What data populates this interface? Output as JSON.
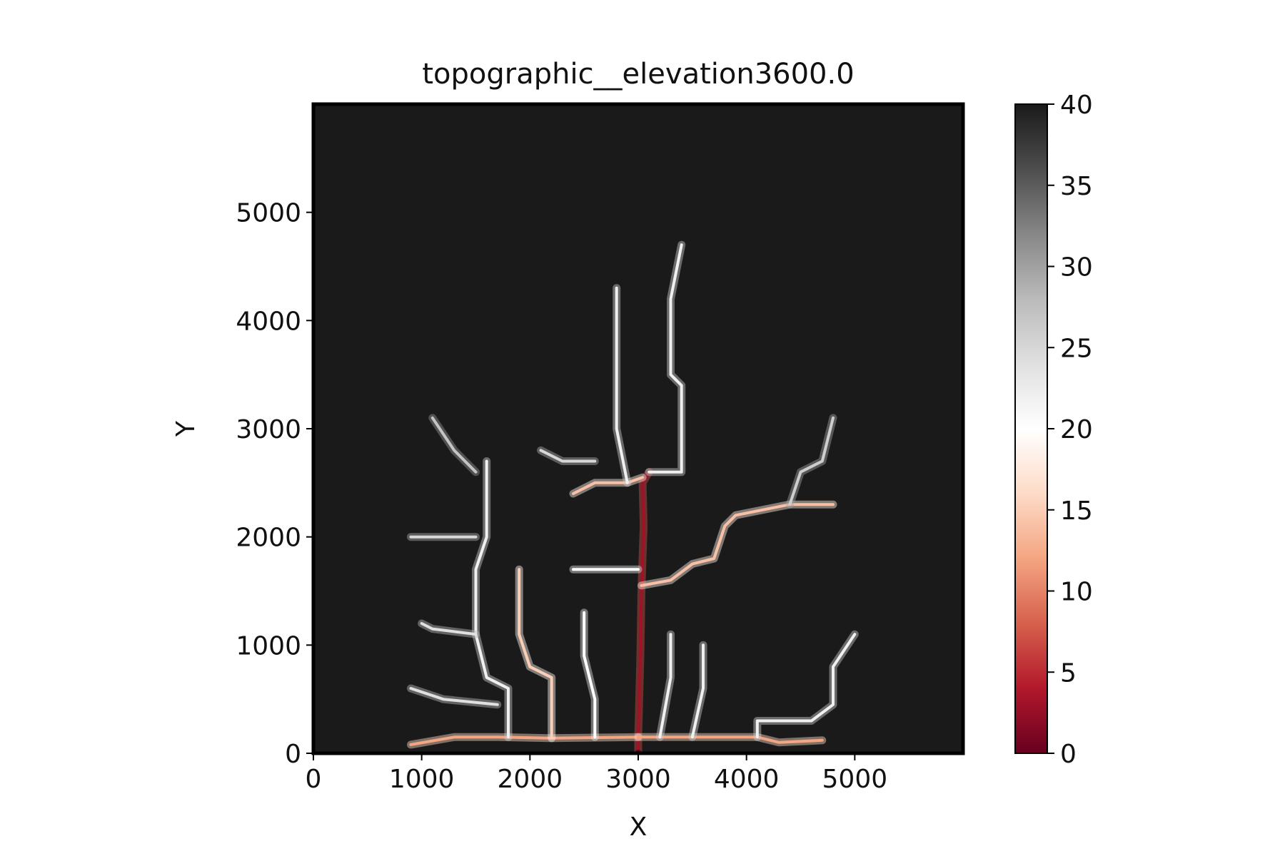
{
  "chart_data": {
    "type": "heatmap",
    "title": "topographic__elevation3600.0",
    "xlabel": "X",
    "ylabel": "Y",
    "xlim": [
      0,
      6000
    ],
    "ylim": [
      0,
      6000
    ],
    "xticks": [
      "0",
      "1000",
      "2000",
      "3000",
      "4000",
      "5000"
    ],
    "yticks": [
      "0",
      "1000",
      "2000",
      "3000",
      "4000",
      "5000"
    ],
    "colorbar": {
      "min": 0,
      "max": 40,
      "ticks": [
        "0",
        "5",
        "10",
        "15",
        "20",
        "25",
        "30",
        "35",
        "40"
      ],
      "colormap": "RdGy",
      "stops": [
        "#67001f",
        "#b2182b",
        "#d6604d",
        "#f4a582",
        "#fddbc7",
        "#ffffff",
        "#e0e0e0",
        "#bababa",
        "#878787",
        "#4d4d4d",
        "#1a1a1a"
      ]
    },
    "background_value": 40,
    "outlet": [
      3000,
      0
    ],
    "channels": [
      {
        "points": [
          [
            3000,
            0
          ],
          [
            3000,
            150
          ],
          [
            3020,
            900
          ],
          [
            3030,
            1500
          ],
          [
            3050,
            2100
          ],
          [
            3040,
            2500
          ],
          [
            3100,
            2600
          ]
        ],
        "z": 3
      },
      {
        "points": [
          [
            3000,
            150
          ],
          [
            2200,
            140
          ],
          [
            1700,
            150
          ],
          [
            1300,
            150
          ],
          [
            900,
            80
          ]
        ],
        "z": 12
      },
      {
        "points": [
          [
            3000,
            150
          ],
          [
            3600,
            150
          ],
          [
            4100,
            150
          ],
          [
            4300,
            100
          ],
          [
            4700,
            120
          ]
        ],
        "z": 12
      },
      {
        "points": [
          [
            4100,
            150
          ],
          [
            4100,
            300
          ],
          [
            4600,
            300
          ],
          [
            4800,
            450
          ],
          [
            4800,
            800
          ],
          [
            5000,
            1100
          ]
        ],
        "z": 22
      },
      {
        "points": [
          [
            2200,
            140
          ],
          [
            2200,
            700
          ],
          [
            2000,
            800
          ],
          [
            1900,
            1100
          ],
          [
            1900,
            1700
          ]
        ],
        "z": 15
      },
      {
        "points": [
          [
            1800,
            150
          ],
          [
            1800,
            600
          ],
          [
            1600,
            700
          ],
          [
            1500,
            1100
          ],
          [
            1500,
            1700
          ],
          [
            1600,
            2000
          ],
          [
            1600,
            2700
          ]
        ],
        "z": 22
      },
      {
        "points": [
          [
            1500,
            1100
          ],
          [
            1100,
            1150
          ],
          [
            1000,
            1200
          ]
        ],
        "z": 24
      },
      {
        "points": [
          [
            1700,
            450
          ],
          [
            1200,
            500
          ],
          [
            900,
            600
          ]
        ],
        "z": 24
      },
      {
        "points": [
          [
            1500,
            2000
          ],
          [
            1300,
            2000
          ],
          [
            900,
            2000
          ]
        ],
        "z": 25
      },
      {
        "points": [
          [
            1500,
            2600
          ],
          [
            1300,
            2800
          ],
          [
            1100,
            3100
          ]
        ],
        "z": 27
      },
      {
        "points": [
          [
            3030,
            1550
          ],
          [
            3300,
            1600
          ],
          [
            3500,
            1750
          ],
          [
            3700,
            1800
          ],
          [
            3800,
            2100
          ],
          [
            3900,
            2200
          ],
          [
            4400,
            2300
          ],
          [
            4800,
            2300
          ]
        ],
        "z": 14
      },
      {
        "points": [
          [
            4400,
            2300
          ],
          [
            4500,
            2600
          ],
          [
            4700,
            2700
          ],
          [
            4800,
            3100
          ]
        ],
        "z": 26
      },
      {
        "points": [
          [
            3040,
            2550
          ],
          [
            2900,
            2500
          ],
          [
            2600,
            2500
          ],
          [
            2400,
            2400
          ]
        ],
        "z": 14
      },
      {
        "points": [
          [
            2900,
            2500
          ],
          [
            2800,
            3000
          ],
          [
            2800,
            3600
          ],
          [
            2800,
            4300
          ]
        ],
        "z": 22
      },
      {
        "points": [
          [
            3100,
            2600
          ],
          [
            3400,
            2600
          ],
          [
            3400,
            3400
          ],
          [
            3300,
            3500
          ],
          [
            3300,
            4200
          ],
          [
            3400,
            4700
          ]
        ],
        "z": 22
      },
      {
        "points": [
          [
            2600,
            2700
          ],
          [
            2300,
            2700
          ],
          [
            2100,
            2800
          ]
        ],
        "z": 25
      },
      {
        "points": [
          [
            3000,
            1700
          ],
          [
            2400,
            1700
          ]
        ],
        "z": 20
      },
      {
        "points": [
          [
            2600,
            150
          ],
          [
            2600,
            500
          ],
          [
            2500,
            900
          ],
          [
            2500,
            1300
          ]
        ],
        "z": 20
      },
      {
        "points": [
          [
            3500,
            150
          ],
          [
            3600,
            600
          ],
          [
            3600,
            1000
          ]
        ],
        "z": 22
      },
      {
        "points": [
          [
            3200,
            150
          ],
          [
            3300,
            700
          ],
          [
            3300,
            1100
          ]
        ],
        "z": 22
      }
    ]
  }
}
